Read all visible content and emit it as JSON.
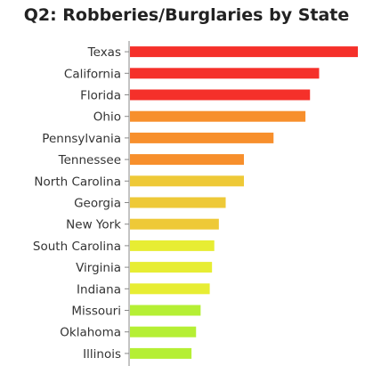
{
  "chart_data": {
    "type": "bar",
    "orientation": "horizontal",
    "title": "Q2: Robberies/Burglaries by State",
    "xlabel": "",
    "ylabel": "",
    "grid": false,
    "categories": [
      "Texas",
      "California",
      "Florida",
      "Ohio",
      "Pennsylvania",
      "Tennessee",
      "North Carolina",
      "Georgia",
      "New York",
      "South Carolina",
      "Virginia",
      "Indiana",
      "Missouri",
      "Oklahoma",
      "Illinois"
    ],
    "values": [
      100,
      83,
      79,
      77,
      63,
      50,
      50,
      42,
      39,
      37,
      36,
      35,
      31,
      29,
      27
    ],
    "xlim": [
      0,
      100
    ],
    "colors": [
      "#f5302a",
      "#f5302a",
      "#f5302a",
      "#f78f2c",
      "#f78f2c",
      "#f78f2c",
      "#eec937",
      "#eec937",
      "#eec937",
      "#e7ed33",
      "#e7ed33",
      "#e7ed33",
      "#b5ef34",
      "#b5ef34",
      "#b5ef34"
    ]
  }
}
